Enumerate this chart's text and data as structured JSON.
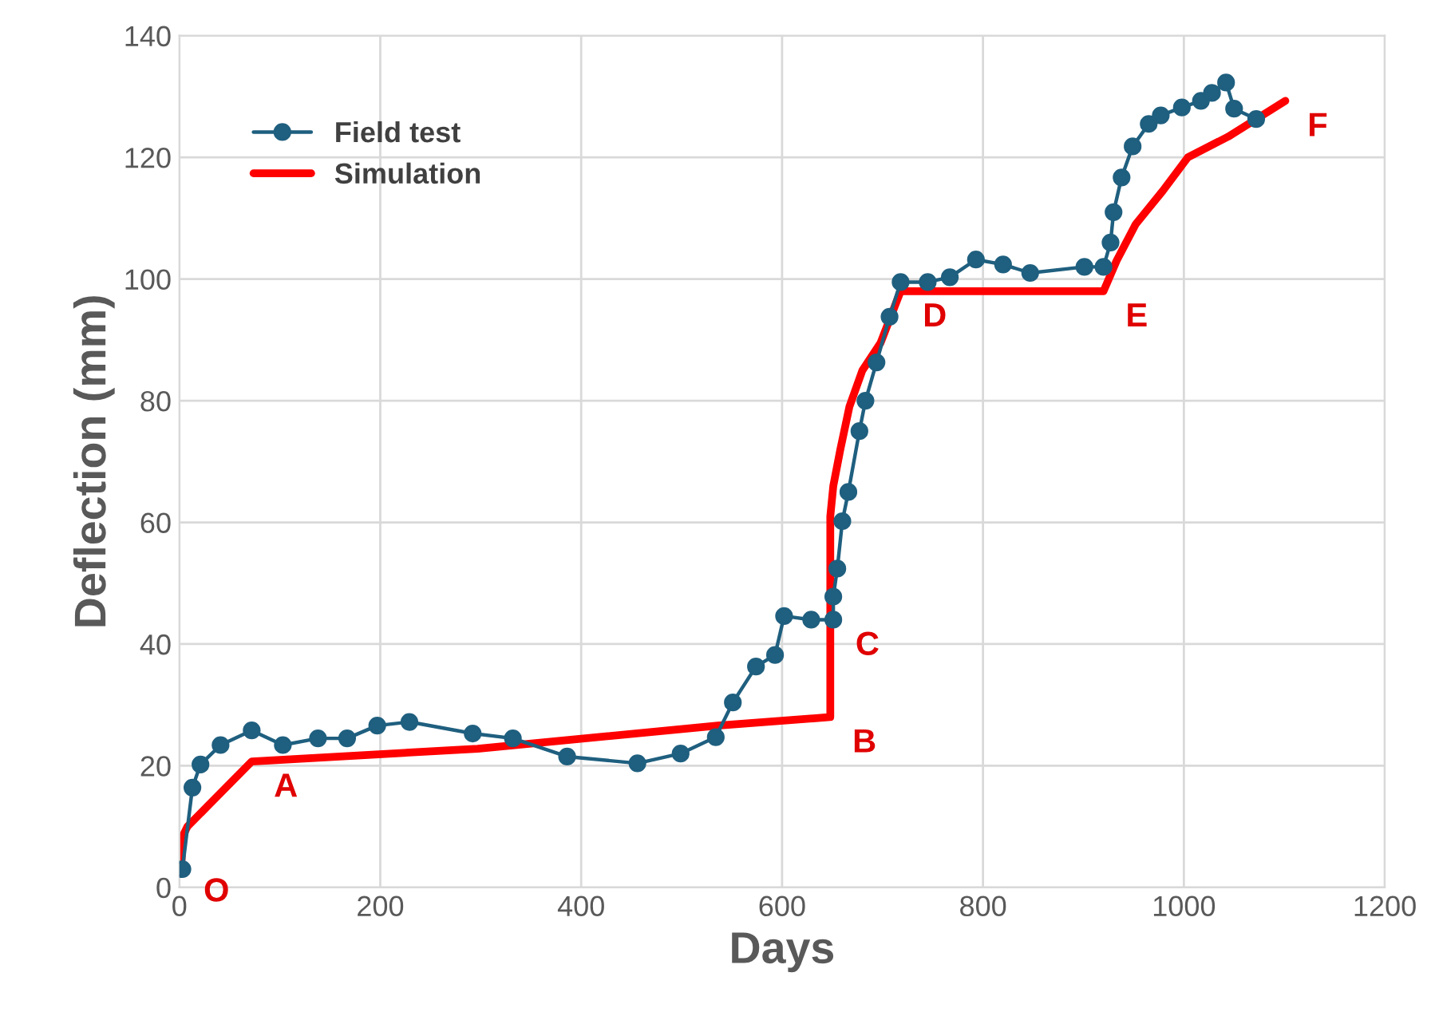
{
  "chart_data": {
    "type": "line",
    "xlabel": "Days",
    "ylabel": "Deflection (mm)",
    "xlim": [
      0,
      1200
    ],
    "ylim": [
      0,
      140
    ],
    "xticks": [
      0,
      200,
      400,
      600,
      800,
      1000,
      1200
    ],
    "yticks": [
      0,
      20,
      40,
      60,
      80,
      100,
      120,
      140
    ],
    "grid": true,
    "legend": "top left",
    "series": [
      {
        "name": "Field test",
        "color": "#1f5f7f",
        "marker": "circle",
        "x": [
          3,
          13,
          21,
          41,
          72,
          103,
          138,
          167,
          197,
          229,
          292,
          332,
          386,
          456,
          499,
          534,
          551,
          574,
          593,
          602,
          629,
          651,
          651,
          655,
          660,
          666,
          677,
          683,
          694,
          707,
          718,
          745,
          767,
          793,
          820,
          847,
          901,
          920,
          927,
          930,
          938,
          949,
          965,
          977,
          998,
          1017,
          1028,
          1042,
          1050,
          1072
        ],
        "values": [
          3,
          16.4,
          20.2,
          23.4,
          25.8,
          23.4,
          24.5,
          24.5,
          26.6,
          27.2,
          25.3,
          24.5,
          21.5,
          20.4,
          22,
          24.7,
          30.4,
          36.3,
          38.2,
          44.6,
          44,
          44,
          47.8,
          52.4,
          60.2,
          65,
          75,
          80,
          86.3,
          93.8,
          99.5,
          99.5,
          100.3,
          103.2,
          102.4,
          101,
          102,
          102,
          106,
          111,
          116.7,
          121.8,
          125.5,
          126.9,
          128.2,
          129.3,
          130.6,
          132.3,
          128,
          126.3
        ]
      },
      {
        "name": "Simulation",
        "color": "#ff0000",
        "marker": "none",
        "x": [
          2,
          3,
          8,
          72,
          297,
          536,
          648,
          648,
          651,
          658,
          667,
          680,
          698,
          718,
          920,
          933,
          952,
          979,
          1004,
          1044,
          1101
        ],
        "values": [
          3.5,
          8.3,
          10,
          20.7,
          22.8,
          26.6,
          28,
          61,
          66,
          72,
          79,
          85,
          89.5,
          98,
          98,
          103,
          109,
          114.5,
          120,
          123.4,
          129.3
        ]
      }
    ],
    "annotations": [
      {
        "text": "O",
        "x": 2,
        "y": 3.5
      },
      {
        "text": "A",
        "x": 72,
        "y": 20.7
      },
      {
        "text": "B",
        "x": 648,
        "y": 28
      },
      {
        "text": "C",
        "x": 651,
        "y": 44
      },
      {
        "text": "D",
        "x": 718,
        "y": 98
      },
      {
        "text": "E",
        "x": 920,
        "y": 98
      },
      {
        "text": "F",
        "x": 1101,
        "y": 129.3
      }
    ]
  }
}
